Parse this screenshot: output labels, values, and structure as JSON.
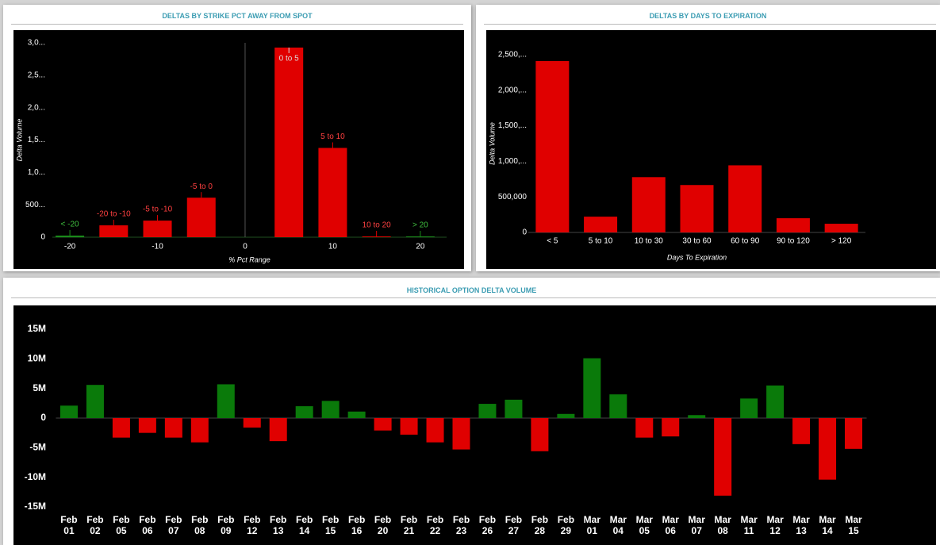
{
  "chart_data": [
    {
      "type": "bar",
      "title": "DELTAS BY STRIKE PCT AWAY FROM SPOT",
      "x_label": "% Pct Range",
      "y_label": "Delta Volume",
      "x": [
        -20,
        -15,
        -10,
        -5,
        5,
        10,
        15,
        20
      ],
      "labels": [
        "< -20",
        "-20 to -10",
        "-5 to -10",
        "-5 to 0",
        "0 to 5",
        "5 to 10",
        "10 to 20",
        "> 20"
      ],
      "values": [
        25,
        183,
        256,
        610,
        2927,
        1378,
        12,
        12
      ],
      "colors": [
        "#1a8a1a",
        "#e00000",
        "#e00000",
        "#e00000",
        "#e00000",
        "#e00000",
        "#e00000",
        "#1a8a1a"
      ],
      "xlim": [
        -22,
        23
      ],
      "xticks": [
        -20,
        -10,
        0,
        10,
        20
      ],
      "ylim": [
        0,
        3000
      ],
      "yticks": [
        0,
        {
          "value": 500,
          "label": "500..."
        },
        {
          "value": 1000,
          "label": "1,0..."
        },
        {
          "value": 1500,
          "label": "1,5..."
        },
        {
          "value": 2000,
          "label": "2,0..."
        },
        {
          "value": 2500,
          "label": "2,5..."
        },
        {
          "value": 3000,
          "label": "3,0..."
        }
      ]
    },
    {
      "type": "bar",
      "title": "DELTAS BY DAYS TO EXPIRATION",
      "x_label": "Days To Expiration",
      "y_label": "Delta Volume",
      "categories": [
        "< 5",
        "5 to 10",
        "10 to 30",
        "30 to 60",
        "60 to 90",
        "90 to 120",
        "> 120"
      ],
      "values": [
        2411000,
        222000,
        778000,
        667000,
        944000,
        200000,
        122000
      ],
      "color": "#e00000",
      "ylim": [
        0,
        2500000
      ],
      "yticks": [
        0,
        {
          "value": 500000,
          "label": "500,000"
        },
        {
          "value": 1000000,
          "label": "1,000,..."
        },
        {
          "value": 1500000,
          "label": "1,500,..."
        },
        {
          "value": 2000000,
          "label": "2,000,..."
        },
        {
          "value": 2500000,
          "label": "2,500,..."
        }
      ]
    },
    {
      "type": "bar",
      "title": "HISTORICAL OPTION DELTA VOLUME",
      "categories": [
        "Feb 01",
        "Feb 02",
        "Feb 05",
        "Feb 06",
        "Feb 07",
        "Feb 08",
        "Feb 09",
        "Feb 12",
        "Feb 13",
        "Feb 14",
        "Feb 15",
        "Feb 16",
        "Feb 20",
        "Feb 21",
        "Feb 22",
        "Feb 23",
        "Feb 26",
        "Feb 27",
        "Feb 28",
        "Feb 29",
        "Mar 01",
        "Mar 04",
        "Mar 05",
        "Mar 06",
        "Mar 07",
        "Mar 08",
        "Mar 11",
        "Mar 12",
        "Mar 13",
        "Mar 14",
        "Mar 15"
      ],
      "values": [
        2100000,
        5600000,
        -3300000,
        -2500000,
        -3300000,
        -4100000,
        5700000,
        -1600000,
        -3900000,
        2000000,
        2900000,
        1100000,
        -2100000,
        -2800000,
        -4100000,
        -5300000,
        2400000,
        3100000,
        -5600000,
        700000,
        10100000,
        4000000,
        -3300000,
        -3100000,
        500000,
        -13100000,
        3300000,
        5500000,
        -4400000,
        -10400000,
        -5200000
      ],
      "positive_color": "#0a7a0a",
      "negative_color": "#e00000",
      "ylim": [
        -15000000,
        15000000
      ],
      "yticks": [
        {
          "value": -15000000,
          "label": "-15M"
        },
        {
          "value": -10000000,
          "label": "-10M"
        },
        {
          "value": -5000000,
          "label": "-5M"
        },
        0,
        {
          "value": 5000000,
          "label": "5M"
        },
        {
          "value": 10000000,
          "label": "10M"
        },
        {
          "value": 15000000,
          "label": "15M"
        }
      ]
    }
  ]
}
